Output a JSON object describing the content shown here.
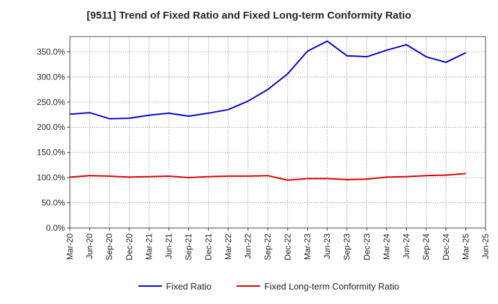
{
  "chart_data": {
    "type": "line",
    "title": "[9511]  Trend of Fixed Ratio and Fixed Long-term Conformity Ratio",
    "xlabel": "",
    "ylabel": "",
    "x": [
      "Mar-20",
      "Jun-20",
      "Sep-20",
      "Dec-20",
      "Mar-21",
      "Jun-21",
      "Sep-21",
      "Dec-21",
      "Mar-22",
      "Jun-22",
      "Sep-22",
      "Dec-22",
      "Mar-23",
      "Jun-23",
      "Sep-23",
      "Dec-23",
      "Mar-24",
      "Jun-24",
      "Sep-24",
      "Dec-24",
      "Mar-25",
      "Jun-25"
    ],
    "ylim": [
      0,
      380
    ],
    "yticks": [
      0,
      50,
      100,
      150,
      200,
      250,
      300,
      350
    ],
    "ytick_labels": [
      "0.0%",
      "50.0%",
      "100.0%",
      "150.0%",
      "200.0%",
      "250.0%",
      "300.0%",
      "350.0%"
    ],
    "grid": true,
    "legend_position": "bottom",
    "series": [
      {
        "name": "Fixed Ratio",
        "color": "#0000cc",
        "values": [
          226,
          229,
          217,
          218,
          224,
          228,
          222,
          228,
          235,
          252,
          275,
          306,
          351,
          371,
          342,
          340,
          353,
          364,
          340,
          329,
          348,
          null
        ]
      },
      {
        "name": "Fixed Long-term Conformity Ratio",
        "color": "#dd0000",
        "values": [
          101,
          104,
          103,
          101,
          102,
          103,
          100,
          102,
          103,
          103,
          104,
          95,
          98,
          98,
          96,
          97,
          101,
          102,
          104,
          105,
          108,
          null
        ]
      }
    ]
  }
}
